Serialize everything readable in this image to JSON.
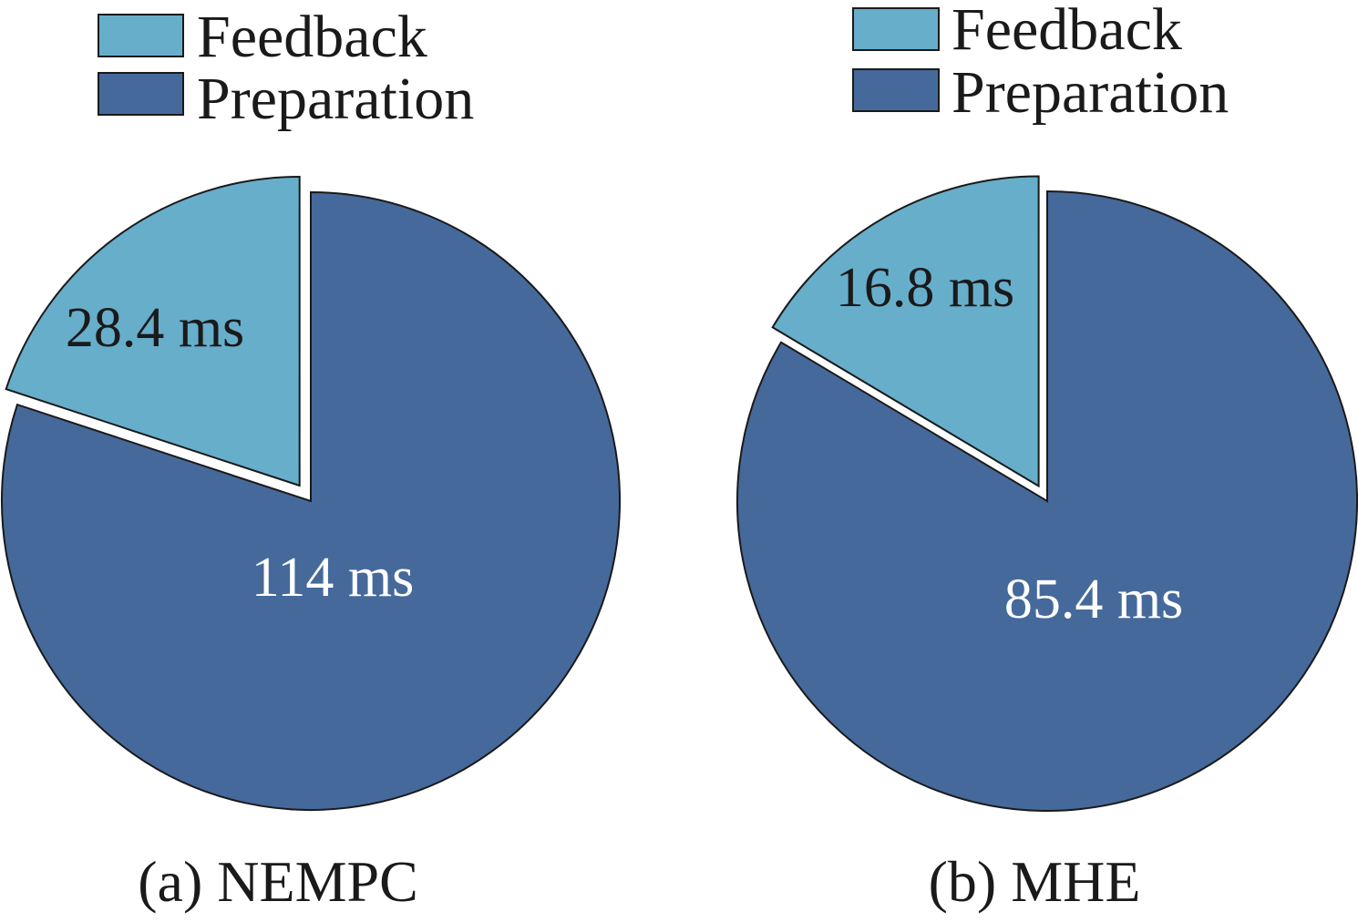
{
  "chart_data": [
    {
      "type": "pie",
      "title": "(a) NEMPC",
      "unit": "ms",
      "start_angle_deg": 0,
      "direction": "clockwise",
      "exploded": [
        "Feedback"
      ],
      "legend": [
        "Feedback",
        "Preparation"
      ],
      "legend_placement": "top",
      "slices": [
        {
          "label": "Preparation",
          "value": 114,
          "display": "114 ms",
          "color": "#46699b",
          "text_color": "#ffffff"
        },
        {
          "label": "Feedback",
          "value": 28.4,
          "display": "28.4 ms",
          "color": "#67aecb",
          "text_color": "#1a1a1a"
        }
      ]
    },
    {
      "type": "pie",
      "title": "(b) MHE",
      "unit": "ms",
      "start_angle_deg": 0,
      "direction": "clockwise",
      "exploded": [
        "Feedback"
      ],
      "legend": [
        "Feedback",
        "Preparation"
      ],
      "legend_placement": "top",
      "slices": [
        {
          "label": "Preparation",
          "value": 85.4,
          "display": "85.4 ms",
          "color": "#46699b",
          "text_color": "#ffffff"
        },
        {
          "label": "Feedback",
          "value": 16.8,
          "display": "16.8 ms",
          "color": "#67aecb",
          "text_color": "#1a1a1a"
        }
      ]
    }
  ],
  "colors": {
    "feedback": "#67aecb",
    "preparation": "#46699b",
    "outline": "#1a1a1a",
    "background": "#ffffff"
  }
}
